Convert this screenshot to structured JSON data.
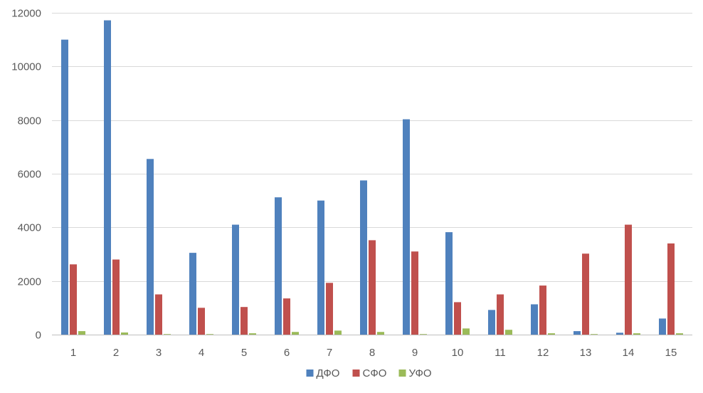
{
  "chart_data": {
    "type": "bar",
    "title": "",
    "xlabel": "",
    "ylabel": "",
    "categories": [
      "1",
      "2",
      "3",
      "4",
      "5",
      "6",
      "7",
      "8",
      "9",
      "10",
      "11",
      "12",
      "13",
      "14",
      "15"
    ],
    "series": [
      {
        "name": "ДФО",
        "color": "#4F81BD",
        "values": [
          11000,
          11720,
          6550,
          3050,
          4100,
          5120,
          5000,
          5750,
          8030,
          3820,
          920,
          1130,
          130,
          70,
          600
        ]
      },
      {
        "name": "СФО",
        "color": "#C0504D",
        "values": [
          2620,
          2800,
          1500,
          1000,
          1030,
          1350,
          1930,
          3520,
          3100,
          1210,
          1500,
          1830,
          3020,
          4100,
          3400
        ]
      },
      {
        "name": "УФО",
        "color": "#9BBB59",
        "values": [
          130,
          80,
          20,
          20,
          50,
          100,
          150,
          100,
          20,
          230,
          180,
          50,
          20,
          50,
          50
        ]
      }
    ],
    "ylim": [
      0,
      12000
    ],
    "yticks": [
      0,
      2000,
      4000,
      6000,
      8000,
      10000,
      12000
    ],
    "grid": true,
    "legend_position": "bottom"
  }
}
